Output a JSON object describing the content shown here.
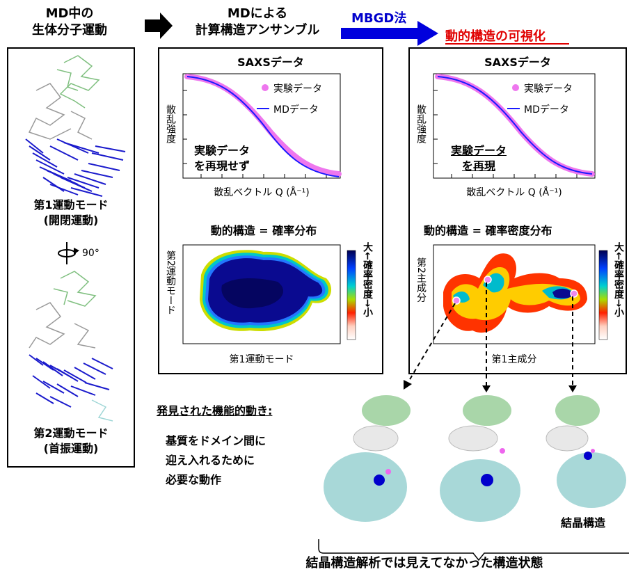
{
  "header": {
    "col1": [
      "MD中の",
      "生体分子運動"
    ],
    "col2": [
      "MDによる",
      "計算構造アンサンブル"
    ],
    "method": "MBGD法",
    "col3": "動的構造の可視化"
  },
  "left_panel": {
    "mode1": [
      "第1運動モード",
      "(開閉運動)"
    ],
    "rotation": "90°",
    "mode2": [
      "第2運動モード",
      "(首振運動)"
    ]
  },
  "panel_md": {
    "saxs_title": "SAXSデータ",
    "ylabel": "散乱強度",
    "xlabel": "散乱ベクトル Q (Å⁻¹)",
    "legend_exp": "実験データ",
    "legend_md": "MDデータ",
    "annotation": [
      "実験データ",
      "を再現せず"
    ],
    "dist_title": "動的構造 = 確率分布",
    "dist_ylabel": "第2運動モード",
    "dist_xlabel": "第1運動モード",
    "cbar_label": "大←確率密度→小"
  },
  "panel_mbgd": {
    "saxs_title": "SAXSデータ",
    "ylabel": "散乱強度",
    "xlabel": "散乱ベクトル Q (Å⁻¹)",
    "legend_exp": "実験データ",
    "legend_md": "MDデータ",
    "annotation": [
      "実験データ",
      "を再現"
    ],
    "dist_title": "動的構造 = 確率密度分布",
    "dist_ylabel": "第2主成分",
    "dist_xlabel": "第1主成分",
    "cbar_label": "大←確率密度→小"
  },
  "findings": {
    "title": "発見された機能的動き:",
    "lines": [
      "基質をドメイン間に",
      "迎え入れるために",
      "必要な動作"
    ]
  },
  "crystal_label": "結晶構造",
  "bottom_caption": "結晶構造解析では見えてなかった構造状態",
  "colors": {
    "accent_red": "#e00000",
    "arrow_blue": "#0000dd",
    "md_line": "#1a1aff",
    "exp_points": "#ee77ee"
  }
}
